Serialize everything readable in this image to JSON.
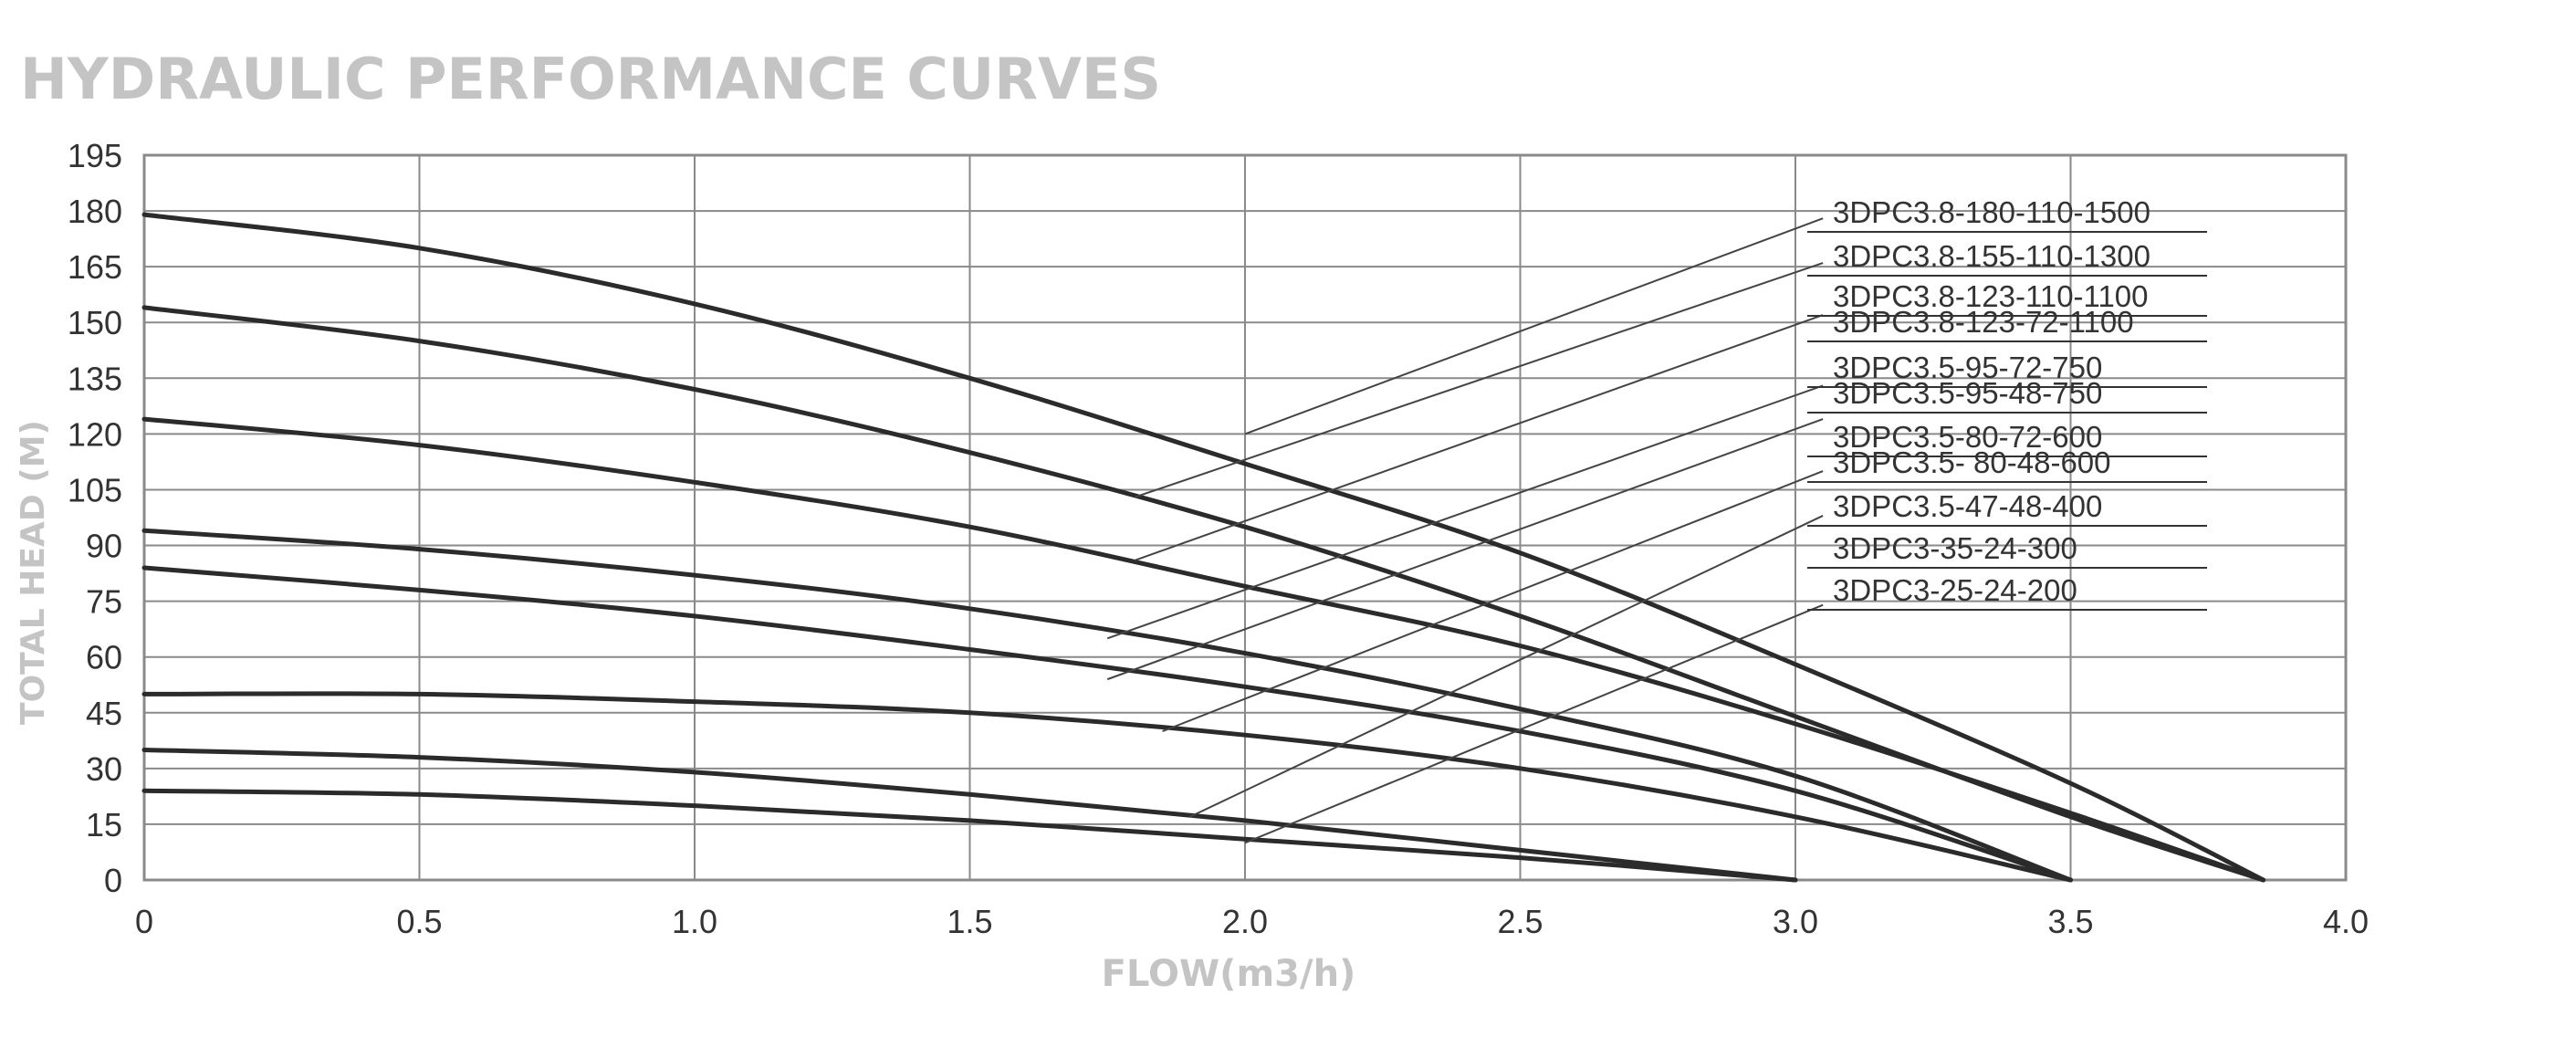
{
  "chart_data": {
    "type": "line",
    "title": "HYDRAULIC PERFORMANCE CURVES",
    "xlabel": "FLOW(m3/h)",
    "ylabel": "TOTAL HEAD (M)",
    "xlim": [
      0,
      4.0
    ],
    "ylim": [
      0,
      195
    ],
    "x_ticks": [
      "0",
      "0.5",
      "1.0",
      "1.5",
      "2.0",
      "2.5",
      "3.0",
      "3.5",
      "4.0"
    ],
    "y_ticks": [
      "0",
      "15",
      "30",
      "45",
      "60",
      "75",
      "90",
      "105",
      "120",
      "135",
      "150",
      "165",
      "180",
      "195"
    ],
    "grid": true,
    "legend_position": "top-right",
    "colors": {
      "line": "#2b2b2b",
      "grid": "#8a8a8a",
      "title": "#c4c4c4",
      "text": "#333333"
    },
    "legend": [
      "3DPC3.8-180-110-1500",
      "3DPC3.8-155-110-1300",
      "3DPC3.8-123-110-1100",
      "3DPC3.8-123-72-1100",
      "3DPC3.5-95-72-750",
      "3DPC3.5-95-48-750",
      "3DPC3.5-80-72-600",
      "3DPC3.5- 80-48-600",
      "3DPC3.5-47-48-400",
      "3DPC3-35-24-300",
      "3DPC3-25-24-200"
    ],
    "series": [
      {
        "x": [
          0,
          0.5,
          1.0,
          1.5,
          2.0,
          2.5,
          3.0,
          3.5,
          3.85
        ],
        "values": [
          179,
          170,
          155,
          135,
          112,
          88,
          58,
          26,
          0
        ]
      },
      {
        "x": [
          0,
          0.5,
          1.0,
          1.5,
          2.0,
          2.5,
          3.0,
          3.5,
          3.85
        ],
        "values": [
          154,
          145,
          132,
          115,
          95,
          71,
          44,
          17,
          0
        ]
      },
      {
        "x": [
          0,
          0.5,
          1.0,
          1.5,
          2.0,
          2.5,
          3.0,
          3.5,
          3.85
        ],
        "values": [
          124,
          117,
          107,
          95,
          79,
          63,
          42,
          18,
          0
        ]
      },
      {
        "x": [
          0,
          0.5,
          1.0,
          1.5,
          2.0,
          2.5,
          3.0,
          3.5
        ],
        "values": [
          94,
          89,
          82,
          73,
          61,
          46,
          28,
          0
        ]
      },
      {
        "x": [
          0,
          0.5,
          1.0,
          1.5,
          2.0,
          2.5,
          3.0,
          3.5
        ],
        "values": [
          84,
          78,
          71,
          62,
          52,
          40,
          24,
          0
        ]
      },
      {
        "x": [
          0,
          0.5,
          1.0,
          1.5,
          2.0,
          2.5,
          3.0,
          3.5
        ],
        "values": [
          50,
          50,
          48,
          45,
          39,
          30,
          17,
          0
        ]
      },
      {
        "x": [
          0,
          0.5,
          1.0,
          1.5,
          2.0,
          2.5,
          3.0
        ],
        "values": [
          35,
          33,
          29,
          23,
          16,
          8,
          0
        ]
      },
      {
        "x": [
          0,
          0.5,
          1.0,
          1.5,
          2.0,
          2.5,
          3.0
        ],
        "values": [
          24,
          23,
          20,
          16,
          11,
          6,
          0
        ]
      }
    ]
  }
}
